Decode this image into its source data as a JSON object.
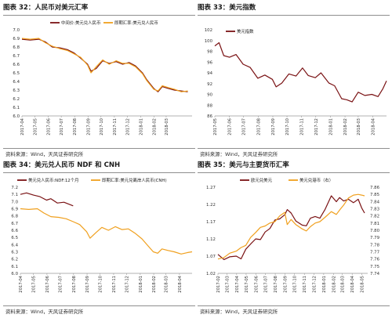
{
  "panels": [
    {
      "title": "图表 32：人民币对美元汇率",
      "source": "资料来源：Wind，天风证券研究所"
    },
    {
      "title": "图表 33：美元指数",
      "source": "资料来源：Wind，天风证券研究所"
    },
    {
      "title": "图表 34：美元兑人民币 NDF 和 CNH",
      "source": "资料来源：Wind，天风证券研究所"
    },
    {
      "title": "图表 35：美元与主要货币汇率",
      "source": "资料来源：Wind，天风证券研究所"
    }
  ],
  "chart_data": [
    {
      "type": "line",
      "title": "图表 32：人民币对美元汇率",
      "legend_position": "top",
      "ylim": [
        6.0,
        7.0
      ],
      "yticks": [
        "7.0",
        "6.9",
        "6.8",
        "6.7",
        "6.6",
        "6.5",
        "6.4",
        "6.3",
        "6.2",
        "6.1",
        "6.0"
      ],
      "x_range": [
        "2017-04-01",
        "2018-04-30"
      ],
      "xticks": [
        "2017-04",
        "2017-05",
        "2017-06",
        "2017-07",
        "2017-08",
        "2017-09",
        "2017-10",
        "2017-11",
        "2017-12",
        "2018-01",
        "2018-02",
        "2018-03"
      ],
      "series": [
        {
          "name": "中间价:美元兑人民币",
          "color": "#7a1214",
          "points": [
            [
              "2017-04-01",
              6.89
            ],
            [
              "2017-04-20",
              6.88
            ],
            [
              "2017-05-10",
              6.89
            ],
            [
              "2017-05-25",
              6.86
            ],
            [
              "2017-06-10",
              6.8
            ],
            [
              "2017-06-28",
              6.79
            ],
            [
              "2017-07-15",
              6.77
            ],
            [
              "2017-07-31",
              6.73
            ],
            [
              "2017-08-15",
              6.67
            ],
            [
              "2017-08-31",
              6.6
            ],
            [
              "2017-09-08",
              6.52
            ],
            [
              "2017-09-20",
              6.55
            ],
            [
              "2017-10-05",
              6.64
            ],
            [
              "2017-10-20",
              6.61
            ],
            [
              "2017-11-05",
              6.63
            ],
            [
              "2017-11-20",
              6.6
            ],
            [
              "2017-12-05",
              6.62
            ],
            [
              "2017-12-20",
              6.58
            ],
            [
              "2018-01-05",
              6.5
            ],
            [
              "2018-01-15",
              6.42
            ],
            [
              "2018-01-31",
              6.32
            ],
            [
              "2018-02-10",
              6.28
            ],
            [
              "2018-02-20",
              6.34
            ],
            [
              "2018-03-05",
              6.32
            ],
            [
              "2018-03-20",
              6.3
            ],
            [
              "2018-04-05",
              6.29
            ],
            [
              "2018-04-20",
              6.28
            ]
          ]
        },
        {
          "name": "即期汇率:美元兑人民币",
          "color": "#f0a01e",
          "points": [
            [
              "2017-04-01",
              6.9
            ],
            [
              "2017-04-20",
              6.89
            ],
            [
              "2017-05-10",
              6.9
            ],
            [
              "2017-05-25",
              6.85
            ],
            [
              "2017-06-10",
              6.81
            ],
            [
              "2017-06-28",
              6.78
            ],
            [
              "2017-07-15",
              6.76
            ],
            [
              "2017-07-31",
              6.72
            ],
            [
              "2017-08-15",
              6.68
            ],
            [
              "2017-08-31",
              6.59
            ],
            [
              "2017-09-08",
              6.5
            ],
            [
              "2017-09-20",
              6.57
            ],
            [
              "2017-10-05",
              6.65
            ],
            [
              "2017-10-20",
              6.6
            ],
            [
              "2017-11-05",
              6.64
            ],
            [
              "2017-11-20",
              6.61
            ],
            [
              "2017-12-05",
              6.61
            ],
            [
              "2017-12-20",
              6.57
            ],
            [
              "2018-01-05",
              6.49
            ],
            [
              "2018-01-15",
              6.41
            ],
            [
              "2018-01-31",
              6.31
            ],
            [
              "2018-02-10",
              6.29
            ],
            [
              "2018-02-20",
              6.35
            ],
            [
              "2018-03-05",
              6.33
            ],
            [
              "2018-03-20",
              6.31
            ],
            [
              "2018-04-05",
              6.28
            ],
            [
              "2018-04-20",
              6.29
            ]
          ]
        }
      ]
    },
    {
      "type": "line",
      "title": "图表 33：美元指数",
      "legend_position": "top-left",
      "ylim": [
        86,
        102
      ],
      "yticks": [
        "102",
        "100",
        "98",
        "96",
        "94",
        "92",
        "90",
        "88",
        "86"
      ],
      "x_range": [
        "2017-05-01",
        "2018-04-30"
      ],
      "xticks": [
        "2017-05",
        "2017-06",
        "2017-07",
        "2017-08",
        "2017-09",
        "2017-10",
        "2017-11",
        "2017-12",
        "2018-01",
        "2018-02",
        "2018-03",
        "2018-04"
      ],
      "series": [
        {
          "name": "美元指数",
          "color": "#7a1214",
          "points": [
            [
              "2017-05-01",
              99.0
            ],
            [
              "2017-05-10",
              99.6
            ],
            [
              "2017-05-20",
              97.2
            ],
            [
              "2017-06-01",
              96.9
            ],
            [
              "2017-06-15",
              97.4
            ],
            [
              "2017-06-30",
              95.6
            ],
            [
              "2017-07-15",
              95.0
            ],
            [
              "2017-07-31",
              93.0
            ],
            [
              "2017-08-15",
              93.6
            ],
            [
              "2017-08-31",
              92.8
            ],
            [
              "2017-09-08",
              91.4
            ],
            [
              "2017-09-20",
              92.1
            ],
            [
              "2017-10-05",
              93.8
            ],
            [
              "2017-10-20",
              93.4
            ],
            [
              "2017-11-03",
              94.9
            ],
            [
              "2017-11-15",
              93.5
            ],
            [
              "2017-11-30",
              93.1
            ],
            [
              "2017-12-12",
              94.0
            ],
            [
              "2017-12-29",
              92.1
            ],
            [
              "2018-01-10",
              91.6
            ],
            [
              "2018-01-25",
              89.2
            ],
            [
              "2018-02-05",
              89.0
            ],
            [
              "2018-02-16",
              88.6
            ],
            [
              "2018-03-01",
              90.4
            ],
            [
              "2018-03-15",
              89.8
            ],
            [
              "2018-03-30",
              90.0
            ],
            [
              "2018-04-12",
              89.6
            ],
            [
              "2018-04-22",
              91.0
            ],
            [
              "2018-04-30",
              92.5
            ]
          ]
        }
      ]
    },
    {
      "type": "line",
      "title": "图表 34：美元兑人民币 NDF 和 CNH",
      "legend_position": "top",
      "ylim": [
        6.0,
        7.2
      ],
      "yticks": [
        "7.2",
        "7.1",
        "7.0",
        "6.9",
        "6.8",
        "6.7",
        "6.6",
        "6.5",
        "6.4",
        "6.3",
        "6.2",
        "6.1",
        "6.0"
      ],
      "x_range": [
        "2017-04-01",
        "2018-04-30"
      ],
      "xticks": [
        "2017-04",
        "2017-05",
        "2017-06",
        "2017-07",
        "2017-08",
        "2017-09",
        "2017-10",
        "2017-11",
        "2017-12",
        "2018-01",
        "2018-02",
        "2018-03",
        "2018-04"
      ],
      "series": [
        {
          "name": "美元兑人民币:NDF:12个月",
          "color": "#7a1214",
          "points": [
            [
              "2017-04-01",
              7.1
            ],
            [
              "2017-04-15",
              7.12
            ],
            [
              "2017-05-01",
              7.09
            ],
            [
              "2017-05-15",
              7.07
            ],
            [
              "2017-05-31",
              7.02
            ],
            [
              "2017-06-10",
              7.04
            ],
            [
              "2017-06-25",
              6.98
            ],
            [
              "2017-07-10",
              6.99
            ],
            [
              "2017-07-31",
              6.94
            ]
          ]
        },
        {
          "name": "即期汇率:美元兑离岸人民币(CNH)",
          "color": "#f0a01e",
          "points": [
            [
              "2017-04-01",
              6.9
            ],
            [
              "2017-04-20",
              6.89
            ],
            [
              "2017-05-10",
              6.9
            ],
            [
              "2017-05-25",
              6.84
            ],
            [
              "2017-06-10",
              6.79
            ],
            [
              "2017-06-28",
              6.78
            ],
            [
              "2017-07-15",
              6.76
            ],
            [
              "2017-07-31",
              6.72
            ],
            [
              "2017-08-15",
              6.68
            ],
            [
              "2017-08-31",
              6.58
            ],
            [
              "2017-09-08",
              6.49
            ],
            [
              "2017-09-20",
              6.56
            ],
            [
              "2017-10-05",
              6.64
            ],
            [
              "2017-10-20",
              6.6
            ],
            [
              "2017-11-05",
              6.65
            ],
            [
              "2017-11-20",
              6.61
            ],
            [
              "2017-12-05",
              6.62
            ],
            [
              "2017-12-20",
              6.56
            ],
            [
              "2018-01-05",
              6.48
            ],
            [
              "2018-01-15",
              6.41
            ],
            [
              "2018-01-31",
              6.3
            ],
            [
              "2018-02-10",
              6.28
            ],
            [
              "2018-02-20",
              6.34
            ],
            [
              "2018-03-05",
              6.32
            ],
            [
              "2018-03-20",
              6.3
            ],
            [
              "2018-04-05",
              6.27
            ],
            [
              "2018-04-20",
              6.29
            ],
            [
              "2018-04-30",
              6.3
            ]
          ]
        }
      ]
    },
    {
      "type": "line",
      "title": "图表 35：美元与主要货币汇率",
      "legend_position": "top",
      "ylim": [
        1.02,
        1.27
      ],
      "yticks": [
        "1.27",
        "1.22",
        "1.17",
        "1.12",
        "1.07",
        "1.02"
      ],
      "y2lim": [
        7.74,
        7.86
      ],
      "y2ticks": [
        "7.86",
        "7.85",
        "7.84",
        "7.83",
        "7.82",
        "7.81",
        "7.80",
        "7.79",
        "7.78",
        "7.77",
        "7.76",
        "7.75",
        "7.74"
      ],
      "x_range": [
        "2017-02-01",
        "2018-05-20"
      ],
      "xticks": [
        "2017-02",
        "2017-03",
        "2017-04",
        "2017-05",
        "2017-06",
        "2017-07",
        "2017-08",
        "2017-09",
        "2017-10",
        "2017-11",
        "2017-12",
        "2018-01",
        "2018-02",
        "2018-03",
        "2018-04",
        "2018-05"
      ],
      "series": [
        {
          "name": "欧元兑美元",
          "color": "#7a1214",
          "axis": "left",
          "points": [
            [
              "2017-02-01",
              1.075
            ],
            [
              "2017-02-20",
              1.06
            ],
            [
              "2017-03-10",
              1.068
            ],
            [
              "2017-03-31",
              1.07
            ],
            [
              "2017-04-15",
              1.062
            ],
            [
              "2017-04-30",
              1.09
            ],
            [
              "2017-05-15",
              1.105
            ],
            [
              "2017-05-31",
              1.12
            ],
            [
              "2017-06-15",
              1.118
            ],
            [
              "2017-06-30",
              1.14
            ],
            [
              "2017-07-15",
              1.15
            ],
            [
              "2017-07-31",
              1.175
            ],
            [
              "2017-08-15",
              1.178
            ],
            [
              "2017-08-31",
              1.19
            ],
            [
              "2017-09-08",
              1.205
            ],
            [
              "2017-09-20",
              1.195
            ],
            [
              "2017-10-05",
              1.172
            ],
            [
              "2017-10-25",
              1.16
            ],
            [
              "2017-11-07",
              1.158
            ],
            [
              "2017-11-20",
              1.18
            ],
            [
              "2017-12-05",
              1.185
            ],
            [
              "2017-12-20",
              1.18
            ],
            [
              "2018-01-05",
              1.205
            ],
            [
              "2018-01-25",
              1.245
            ],
            [
              "2018-02-10",
              1.228
            ],
            [
              "2018-02-20",
              1.24
            ],
            [
              "2018-03-05",
              1.23
            ],
            [
              "2018-03-20",
              1.235
            ],
            [
              "2018-04-05",
              1.225
            ],
            [
              "2018-04-20",
              1.235
            ],
            [
              "2018-05-01",
              1.21
            ],
            [
              "2018-05-10",
              1.195
            ]
          ]
        },
        {
          "name": "美元兑港币（右）",
          "color": "#f0a01e",
          "axis": "right",
          "points": [
            [
              "2017-02-01",
              7.76
            ],
            [
              "2017-02-20",
              7.762
            ],
            [
              "2017-03-10",
              7.768
            ],
            [
              "2017-03-31",
              7.771
            ],
            [
              "2017-04-15",
              7.776
            ],
            [
              "2017-04-30",
              7.779
            ],
            [
              "2017-05-15",
              7.79
            ],
            [
              "2017-05-31",
              7.797
            ],
            [
              "2017-06-15",
              7.804
            ],
            [
              "2017-06-30",
              7.806
            ],
            [
              "2017-07-15",
              7.81
            ],
            [
              "2017-07-31",
              7.812
            ],
            [
              "2017-08-15",
              7.82
            ],
            [
              "2017-08-31",
              7.825
            ],
            [
              "2017-09-08",
              7.808
            ],
            [
              "2017-09-20",
              7.815
            ],
            [
              "2017-10-05",
              7.808
            ],
            [
              "2017-10-25",
              7.802
            ],
            [
              "2017-11-07",
              7.799
            ],
            [
              "2017-11-20",
              7.805
            ],
            [
              "2017-12-05",
              7.81
            ],
            [
              "2017-12-20",
              7.812
            ],
            [
              "2018-01-05",
              7.818
            ],
            [
              "2018-01-25",
              7.826
            ],
            [
              "2018-02-10",
              7.822
            ],
            [
              "2018-02-20",
              7.828
            ],
            [
              "2018-03-05",
              7.835
            ],
            [
              "2018-03-20",
              7.845
            ],
            [
              "2018-04-05",
              7.849
            ],
            [
              "2018-04-20",
              7.85
            ],
            [
              "2018-05-01",
              7.849
            ],
            [
              "2018-05-10",
              7.848
            ]
          ]
        }
      ]
    }
  ]
}
